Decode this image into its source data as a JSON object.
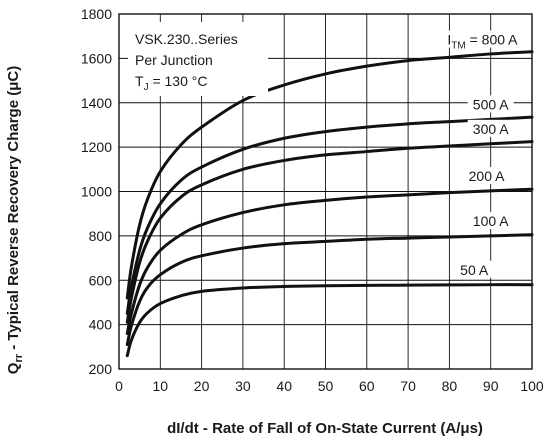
{
  "chart_data": {
    "type": "line",
    "title": "",
    "xlabel": "dI/dt - Rate of Fall of On-State Current (A/μs)",
    "ylabel_main": "Q",
    "ylabel_sub": "rr",
    "ylabel_rest": " - Typical Reverse Recovery Charge (μC)",
    "xlim": [
      0,
      100
    ],
    "ylim": [
      200,
      1800
    ],
    "xticks": [
      0,
      10,
      20,
      30,
      40,
      50,
      60,
      70,
      80,
      90,
      100
    ],
    "yticks": [
      200,
      400,
      600,
      800,
      1000,
      1200,
      1400,
      1600,
      1800
    ],
    "grid": true,
    "annotation": {
      "line1": "VSK.230..Series",
      "line2": "Per Junction",
      "line3_main": "T",
      "line3_sub": "J",
      "line3_rest": " = 130 °C"
    },
    "series": [
      {
        "label_main": "I",
        "label_sub": "TM",
        "label_rest": " = 800 A",
        "x": [
          2,
          3,
          5,
          7,
          10,
          15,
          20,
          30,
          40,
          50,
          60,
          70,
          80,
          90,
          100
        ],
        "y": [
          520,
          660,
          850,
          970,
          1090,
          1210,
          1290,
          1410,
          1480,
          1530,
          1565,
          1590,
          1605,
          1620,
          1630
        ]
      },
      {
        "label_main": "500 A",
        "label_sub": "",
        "label_rest": "",
        "x": [
          2,
          3,
          5,
          7,
          10,
          15,
          20,
          30,
          40,
          50,
          60,
          70,
          80,
          90,
          100
        ],
        "y": [
          450,
          570,
          735,
          840,
          945,
          1050,
          1110,
          1190,
          1240,
          1270,
          1290,
          1305,
          1315,
          1325,
          1335
        ]
      },
      {
        "label_main": "300 A",
        "label_sub": "",
        "label_rest": "",
        "x": [
          2,
          3,
          5,
          7,
          10,
          15,
          20,
          30,
          40,
          50,
          60,
          70,
          80,
          90,
          100
        ],
        "y": [
          410,
          520,
          680,
          780,
          880,
          975,
          1030,
          1100,
          1140,
          1165,
          1180,
          1195,
          1205,
          1215,
          1225
        ]
      },
      {
        "label_main": "200 A",
        "label_sub": "",
        "label_rest": "",
        "x": [
          2,
          3,
          5,
          7,
          10,
          15,
          20,
          30,
          40,
          50,
          60,
          70,
          80,
          90,
          100
        ],
        "y": [
          360,
          450,
          580,
          660,
          735,
          805,
          850,
          905,
          940,
          960,
          975,
          985,
          995,
          1003,
          1010
        ]
      },
      {
        "label_main": "100 A",
        "label_sub": "",
        "label_rest": "",
        "x": [
          2,
          3,
          5,
          7,
          10,
          15,
          20,
          30,
          40,
          50,
          60,
          70,
          80,
          90,
          100
        ],
        "y": [
          310,
          395,
          505,
          570,
          625,
          680,
          710,
          745,
          765,
          775,
          785,
          790,
          795,
          800,
          805
        ]
      },
      {
        "label_main": "50 A",
        "label_sub": "",
        "label_rest": "",
        "x": [
          2,
          3,
          5,
          7,
          10,
          15,
          20,
          30,
          40,
          50,
          60,
          70,
          80,
          90,
          100
        ],
        "y": [
          260,
          330,
          410,
          455,
          495,
          530,
          550,
          565,
          572,
          575,
          577,
          578,
          579,
          580,
          580
        ]
      }
    ]
  }
}
